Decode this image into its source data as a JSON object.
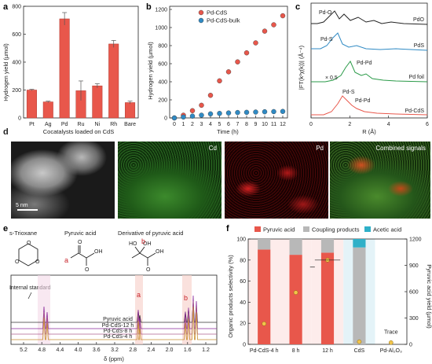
{
  "panels": {
    "a": "a",
    "b": "b",
    "c": "c",
    "d": "d",
    "e": "e",
    "f": "f"
  },
  "chart_data": [
    {
      "type": "bar",
      "panel": "a",
      "title": "",
      "categories": [
        "Pt",
        "Ag",
        "Pd",
        "Ru",
        "Ni",
        "Rh",
        "Bare"
      ],
      "values": [
        200,
        115,
        710,
        195,
        230,
        530,
        110
      ],
      "errors": [
        5,
        5,
        45,
        70,
        15,
        25,
        10
      ],
      "xlabel": "Cocatalysts loaded on CdS",
      "ylabel": "Hydrogen yield (µmol)",
      "ylim": [
        0,
        800
      ],
      "yticks": [
        0,
        200,
        400,
        600,
        800
      ],
      "color": "#e8574b"
    },
    {
      "type": "scatter",
      "panel": "b",
      "xlabel": "Time (h)",
      "ylabel": "Hydrogen yield (µmol)",
      "xlim": [
        0,
        12
      ],
      "ylim": [
        0,
        1200
      ],
      "xticks": [
        0,
        1,
        2,
        3,
        4,
        5,
        6,
        7,
        8,
        9,
        10,
        11,
        12
      ],
      "yticks": [
        0,
        200,
        400,
        600,
        800,
        1000,
        1200
      ],
      "legend_position": "top-left",
      "series": [
        {
          "name": "Pd-CdS",
          "color": "#e8574b",
          "x": [
            0,
            1,
            2,
            3,
            4,
            5,
            6,
            7,
            8,
            9,
            10,
            11,
            12
          ],
          "y": [
            0,
            30,
            80,
            140,
            250,
            410,
            510,
            620,
            720,
            830,
            960,
            1030,
            1130
          ]
        },
        {
          "name": "Pd-CdS-bulk",
          "color": "#2f8ac4",
          "x": [
            0,
            1,
            2,
            3,
            4,
            5,
            6,
            7,
            8,
            9,
            10,
            11,
            12
          ],
          "y": [
            0,
            10,
            20,
            30,
            45,
            50,
            55,
            60,
            62,
            65,
            68,
            70,
            72
          ]
        }
      ]
    },
    {
      "type": "line",
      "panel": "c",
      "xlabel": "R (Å)",
      "ylabel": "|FT(k³χ(k))| (Å⁻⁴)",
      "xlim": [
        0,
        6
      ],
      "xticks": [
        0,
        2,
        4,
        6
      ],
      "series": [
        {
          "name": "PdO",
          "color": "#222222"
        },
        {
          "name": "PdS",
          "color": "#2f8ac4"
        },
        {
          "name": "Pd foil",
          "color": "#2a9a48"
        },
        {
          "name": "Pd-CdS",
          "color": "#e8574b"
        }
      ],
      "annotations": [
        "Pd-O",
        "Pd-S",
        "Pd-Pd",
        "× 0.5",
        "Pd-S",
        "Pd-Pd"
      ]
    },
    {
      "type": "bar",
      "panel": "f",
      "categories": [
        "Pd-CdS-4 h",
        "8 h",
        "12 h",
        "CdS",
        "Pd-Al₂O₃"
      ],
      "ylabel": "Organic products selectivity (%)",
      "y2label": "Pyruvic acid yield (µmol)",
      "ylim": [
        0,
        100
      ],
      "y2lim": [
        0,
        1200
      ],
      "yticks": [
        0,
        20,
        40,
        60,
        80,
        100
      ],
      "y2ticks": [
        0,
        300,
        600,
        900,
        1200
      ],
      "legend_position": "top",
      "series": [
        {
          "name": "Pyruvic acid",
          "color": "#e8574b",
          "values": [
            90,
            85,
            87,
            0,
            0
          ]
        },
        {
          "name": "Coupling products",
          "color": "#b8b8b8",
          "values": [
            10,
            15,
            13,
            92,
            0
          ]
        },
        {
          "name": "Acetic acid",
          "color": "#2fb0c8",
          "values": [
            0,
            0,
            0,
            8,
            0
          ]
        }
      ],
      "yield_points": [
        235,
        590,
        960,
        30,
        20
      ],
      "annotation": "Trace"
    }
  ],
  "micro": {
    "scale": "5 nm",
    "cd_label": "Cd",
    "pd_label": "Pd",
    "combined_label": "Combined signals"
  },
  "nmr": {
    "labels": [
      "s-Trioxane",
      "Pyruvic acid",
      "Derivative of pyruvic acid"
    ],
    "marker_a": "a",
    "marker_b": "b",
    "internal_standard": "Internal standard",
    "traces": [
      "Pyruvic acid",
      "Pd-CdS-12 h",
      "Pd-CdS-8 h",
      "Pd-CdS-4 h"
    ],
    "xlabel": "δ (ppm)",
    "xticks": [
      "5.2",
      "4.8",
      "4.4",
      "4.0",
      "3.6",
      "3.2",
      "2.8",
      "2.4",
      "2.0",
      "1.6",
      "1.2"
    ]
  }
}
